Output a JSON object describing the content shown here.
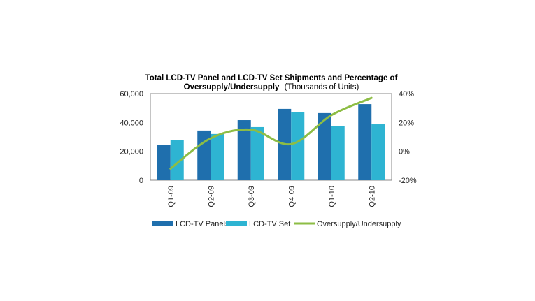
{
  "chart_data": {
    "type": "bar",
    "title": "Total LCD-TV Panel and LCD-TV Set Shipments and Percentage of",
    "title_line2_bold": "Oversupply/Undersupply",
    "title_line2_normal": "(Thousands of Units)",
    "categories": [
      "Q1-09",
      "Q2-09",
      "Q3-09",
      "Q4-09",
      "Q1-10",
      "Q2-10"
    ],
    "series": [
      {
        "name": "LCD-TV Panels",
        "type": "bar",
        "axis": "left",
        "color": "#1f6fad",
        "values": [
          24200,
          34400,
          41600,
          49400,
          46500,
          52700
        ]
      },
      {
        "name": "LCD-TV Set",
        "type": "bar",
        "axis": "left",
        "color": "#2eb4d2",
        "values": [
          27600,
          32000,
          36800,
          47000,
          37300,
          38700
        ]
      },
      {
        "name": "Oversupply/Undersupply",
        "type": "line",
        "axis": "right",
        "color": "#8dbd45",
        "values": [
          -12,
          9,
          15,
          5,
          25,
          37
        ]
      }
    ],
    "ylim_left": [
      0,
      60000
    ],
    "yticks_left": [
      "0",
      "20,000",
      "40,000",
      "60,000"
    ],
    "ylim_right": [
      -20,
      40
    ],
    "yticks_right": [
      "-20%",
      "0%",
      "20%",
      "40%"
    ],
    "xlabel": "",
    "ylabel": "",
    "grid": false,
    "legend": "bottom"
  }
}
